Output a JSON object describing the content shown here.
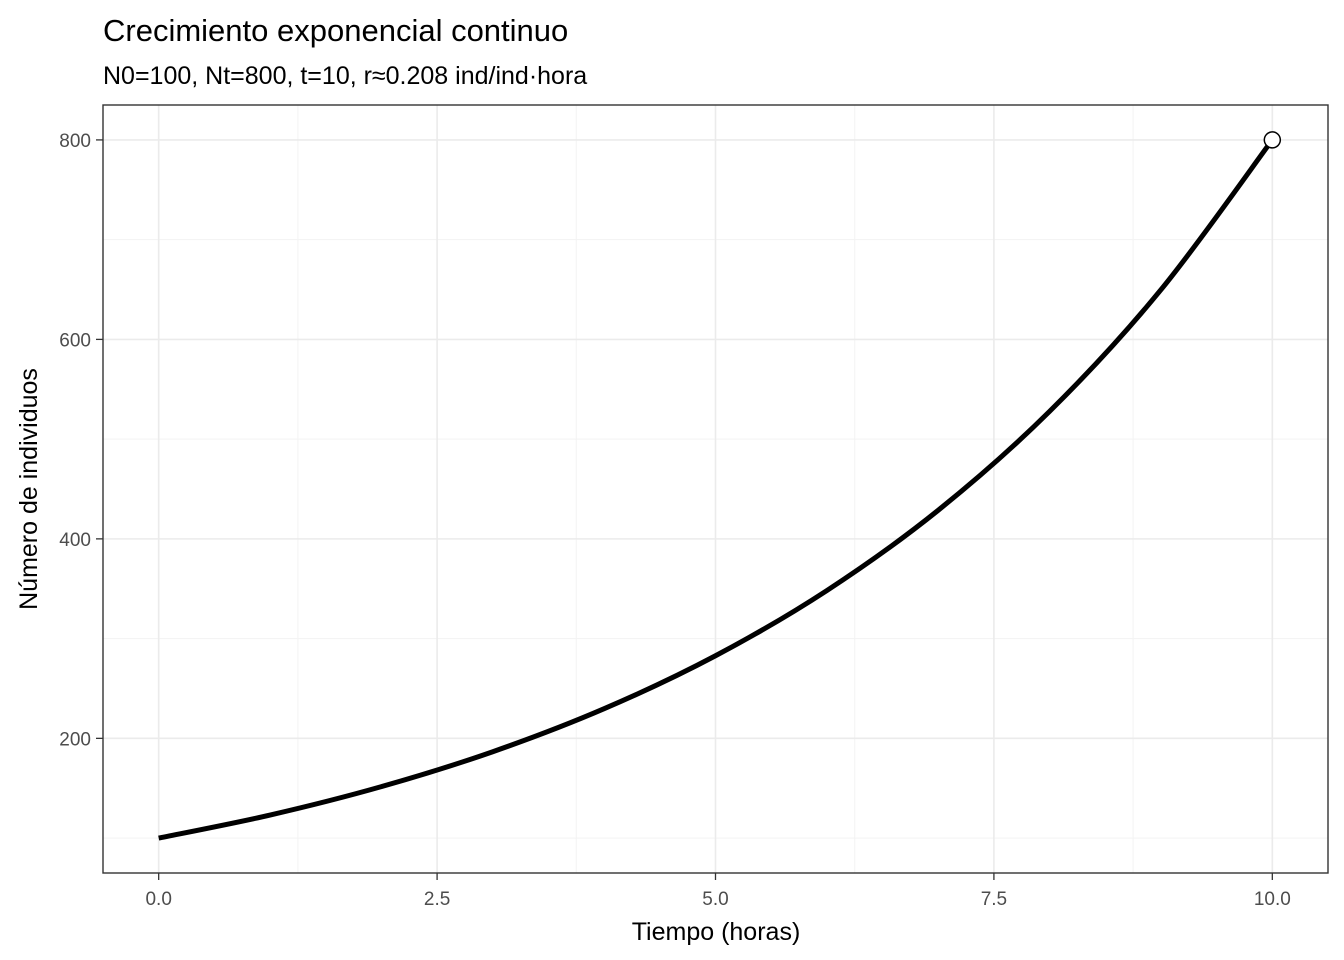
{
  "chart_data": {
    "type": "line",
    "title": "Crecimiento exponencial continuo",
    "subtitle": "N0=100, Nt=800, t=10, r≈0.208 ind/ind·hora",
    "xlabel": "Tiempo (horas)",
    "ylabel": "Número de individuos",
    "xlim": [
      -0.5,
      10.5
    ],
    "ylim": [
      65,
      835
    ],
    "x_ticks": [
      0,
      2.5,
      5,
      7.5,
      10
    ],
    "x_tick_labels": [
      "0.0",
      "2.5",
      "5.0",
      "7.5",
      "10.0"
    ],
    "y_ticks": [
      200,
      400,
      600,
      800
    ],
    "y_tick_labels": [
      "200",
      "400",
      "600",
      "800"
    ],
    "grid": true,
    "series": [
      {
        "x": [
          0,
          1,
          2,
          3,
          4,
          5,
          6,
          7,
          8,
          9,
          10
        ],
        "y": [
          100,
          123.1,
          151.6,
          186.6,
          229.7,
          282.8,
          348.2,
          428.7,
          527.8,
          649.8,
          800
        ],
        "color": "#000000"
      }
    ],
    "points": [
      {
        "x": 10,
        "y": 800,
        "fill": "#ffffff",
        "stroke": "#000000"
      }
    ]
  }
}
